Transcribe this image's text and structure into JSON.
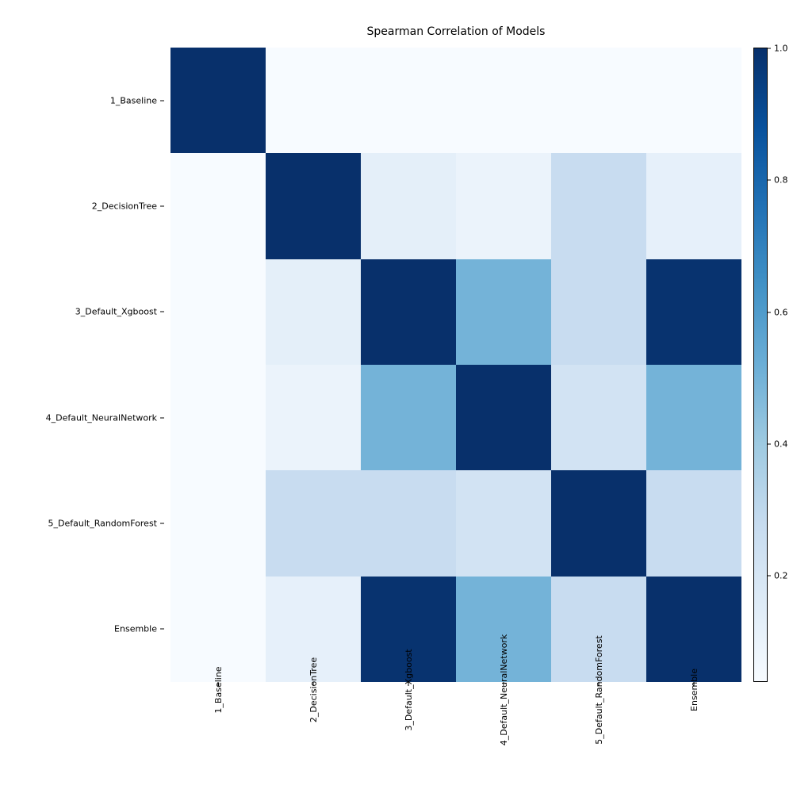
{
  "title": "Spearman Correlation of Models",
  "title_fontsize": 14,
  "label_fontsize": 11,
  "background_color": "#ffffff",
  "heatmap": {
    "type": "heatmap",
    "vmin": 0.04,
    "vmax": 1.0,
    "labels": [
      "1_Baseline",
      "2_DecisionTree",
      "3_Default_Xgboost",
      "4_Default_NeuralNetwork",
      "5_Default_RandomForest",
      "Ensemble"
    ],
    "values": [
      [
        1.0,
        0.04,
        0.04,
        0.04,
        0.04,
        0.04
      ],
      [
        0.04,
        1.0,
        0.13,
        0.1,
        0.27,
        0.12
      ],
      [
        0.04,
        0.13,
        1.0,
        0.5,
        0.27,
        0.99
      ],
      [
        0.04,
        0.1,
        0.5,
        1.0,
        0.22,
        0.5
      ],
      [
        0.04,
        0.27,
        0.27,
        0.22,
        1.0,
        0.27
      ],
      [
        0.04,
        0.12,
        0.99,
        0.5,
        0.27,
        1.0
      ]
    ],
    "colormap_stops": [
      {
        "t": 0.0,
        "color": "#f7fbff"
      },
      {
        "t": 0.125,
        "color": "#deebf7"
      },
      {
        "t": 0.25,
        "color": "#c6dbef"
      },
      {
        "t": 0.375,
        "color": "#9ecae1"
      },
      {
        "t": 0.5,
        "color": "#6baed6"
      },
      {
        "t": 0.625,
        "color": "#4292c6"
      },
      {
        "t": 0.75,
        "color": "#2171b5"
      },
      {
        "t": 0.875,
        "color": "#08519c"
      },
      {
        "t": 1.0,
        "color": "#08306b"
      }
    ]
  },
  "colorbar": {
    "ticks": [
      0.2,
      0.4,
      0.6,
      0.8,
      1.0
    ]
  }
}
